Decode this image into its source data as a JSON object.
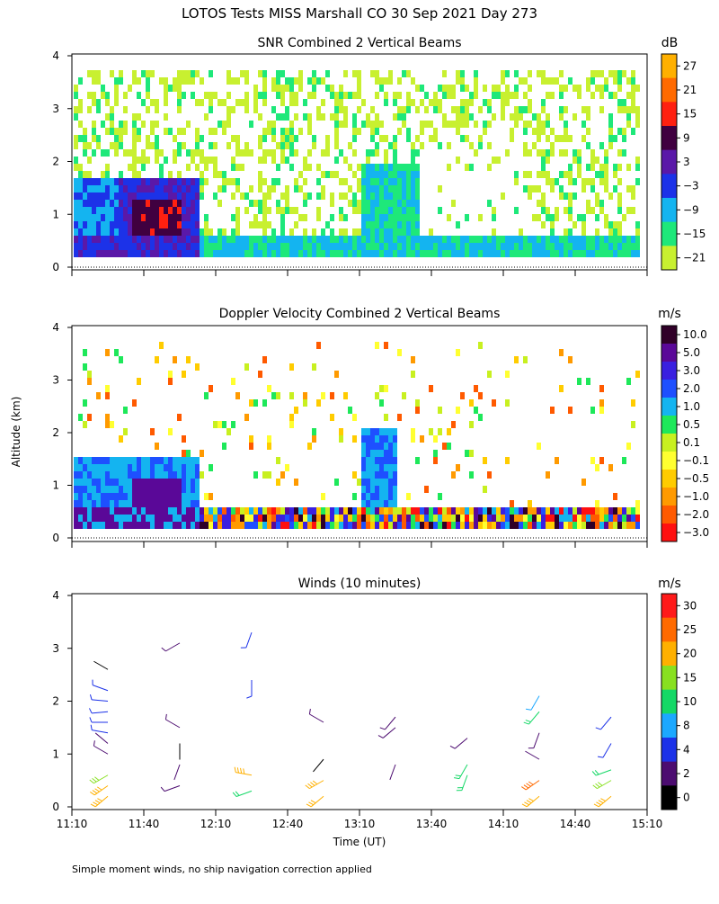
{
  "page": {
    "title": "LOTOS Tests MISS Marshall CO  30 Sep 2021 Day 273",
    "ylabel": "Altitude (km)",
    "xlabel": "Time (UT)",
    "footnote": "Simple moment winds, no ship navigation correction applied",
    "time_ticks": [
      "11:10",
      "11:40",
      "12:10",
      "12:40",
      "13:10",
      "13:40",
      "14:10",
      "14:40",
      "15:10"
    ]
  },
  "chart_data": [
    {
      "type": "heatmap",
      "title": "SNR Combined 2 Vertical Beams",
      "units": "dB",
      "xlim": [
        "11:10",
        "15:10"
      ],
      "ylim": [
        0,
        4
      ],
      "yticks": [
        0,
        1,
        2,
        3,
        4
      ],
      "colorbar_labels": [
        "27",
        "21",
        "15",
        "9",
        "3",
        "−3",
        "−9",
        "−15",
        "−21"
      ],
      "colorbar_colors": [
        "#ffb000",
        "#ff6a00",
        "#ff2010",
        "#400040",
        "#5a18a8",
        "#1c32e8",
        "#14b4f0",
        "#1ee87a",
        "#c8f030"
      ],
      "description_regions": [
        {
          "t": "11:10-11:45",
          "alt_km": [
            0.25,
            1.7
          ],
          "snr_db": "-9 to 9"
        },
        {
          "t": "11:40-11:55",
          "alt_km": [
            0.3,
            1.5
          ],
          "snr_db": "9 to 21"
        },
        {
          "t": "11:10-15:10",
          "alt_km": [
            0.25,
            0.6
          ],
          "snr_db": "-15 to -3"
        },
        {
          "t": "11:10-15:10",
          "alt_km": [
            0.6,
            4.0
          ],
          "snr_db": "-21 to -15 (scattered)"
        }
      ]
    },
    {
      "type": "heatmap",
      "title": "Doppler Velocity Combined 2 Vertical Beams",
      "units": "m/s",
      "xlim": [
        "11:10",
        "15:10"
      ],
      "ylim": [
        0,
        4
      ],
      "yticks": [
        0,
        1,
        2,
        3,
        4
      ],
      "colorbar_labels": [
        "10.0",
        "5.0",
        "3.0",
        "2.0",
        "1.0",
        "0.5",
        "0.1",
        "−0.1",
        "−0.5",
        "−1.0",
        "−2.0",
        "−3.0"
      ],
      "colorbar_colors": [
        "#300028",
        "#5a0898",
        "#3a20e0",
        "#1e50ff",
        "#14b4f0",
        "#1ee85a",
        "#c8f020",
        "#ffff30",
        "#ffcc00",
        "#ff9a00",
        "#ff5a00",
        "#ff1010"
      ],
      "description_regions": [
        {
          "t": "11:10-11:55",
          "alt_km": [
            0.3,
            1.6
          ],
          "w_ms": "1.0 to 5.0"
        },
        {
          "t": "12:00-15:10",
          "alt_km": [
            0.3,
            0.7
          ],
          "w_ms": "mixed -3.0 to 10.0"
        }
      ]
    },
    {
      "type": "scatter",
      "title": "Winds (10 minutes)",
      "units": "m/s",
      "xlim": [
        "11:10",
        "15:10"
      ],
      "ylim": [
        0,
        4
      ],
      "yticks": [
        0,
        1,
        2,
        3,
        4
      ],
      "colorbar_labels": [
        "30",
        "25",
        "20",
        "15",
        "10",
        "8",
        "4",
        "2",
        "0"
      ],
      "colorbar_colors": [
        "#ff1a1a",
        "#ff6a00",
        "#ffb000",
        "#88e020",
        "#14d866",
        "#1ca8ff",
        "#1c32e8",
        "#4c0c70",
        "#000000"
      ],
      "profiles": [
        {
          "time": "11:25",
          "winds": [
            {
              "alt": 0.2,
              "speed": 24,
              "dir": 230
            },
            {
              "alt": 0.4,
              "speed": 22,
              "dir": 235
            },
            {
              "alt": 0.6,
              "speed": 16,
              "dir": 240
            },
            {
              "alt": 1.0,
              "speed": 3,
              "dir": 300
            },
            {
              "alt": 1.2,
              "speed": 2,
              "dir": 310
            },
            {
              "alt": 1.4,
              "speed": 4,
              "dir": 280
            },
            {
              "alt": 1.6,
              "speed": 5,
              "dir": 270
            },
            {
              "alt": 1.8,
              "speed": 6,
              "dir": 265
            },
            {
              "alt": 2.0,
              "speed": 4,
              "dir": 275
            },
            {
              "alt": 2.2,
              "speed": 4,
              "dir": 290
            },
            {
              "alt": 2.6,
              "speed": 1,
              "dir": 300
            }
          ]
        },
        {
          "time": "11:55",
          "winds": [
            {
              "alt": 0.4,
              "speed": 3,
              "dir": 250
            },
            {
              "alt": 0.8,
              "speed": 2,
              "dir": 200
            },
            {
              "alt": 1.2,
              "speed": 1,
              "dir": 180
            },
            {
              "alt": 1.5,
              "speed": 3,
              "dir": 300
            },
            {
              "alt": 3.1,
              "speed": 3,
              "dir": 240
            }
          ]
        },
        {
          "time": "12:25",
          "winds": [
            {
              "alt": 0.3,
              "speed": 13,
              "dir": 250
            },
            {
              "alt": 0.6,
              "speed": 22,
              "dir": 280
            },
            {
              "alt": 2.4,
              "speed": 4,
              "dir": 180
            },
            {
              "alt": 3.3,
              "speed": 4,
              "dir": 200
            }
          ]
        },
        {
          "time": "12:55",
          "winds": [
            {
              "alt": 0.2,
              "speed": 20,
              "dir": 230
            },
            {
              "alt": 0.5,
              "speed": 22,
              "dir": 240
            },
            {
              "alt": 0.9,
              "speed": 1,
              "dir": 220
            },
            {
              "alt": 1.6,
              "speed": 3,
              "dir": 300
            }
          ]
        },
        {
          "time": "13:25",
          "winds": [
            {
              "alt": 0.8,
              "speed": 2,
              "dir": 200
            },
            {
              "alt": 1.5,
              "speed": 3,
              "dir": 230
            },
            {
              "alt": 1.7,
              "speed": 3,
              "dir": 220
            }
          ]
        },
        {
          "time": "13:55",
          "winds": [
            {
              "alt": 0.6,
              "speed": 12,
              "dir": 200
            },
            {
              "alt": 0.8,
              "speed": 13,
              "dir": 210
            },
            {
              "alt": 1.3,
              "speed": 3,
              "dir": 230
            }
          ]
        },
        {
          "time": "14:25",
          "winds": [
            {
              "alt": 0.2,
              "speed": 24,
              "dir": 230
            },
            {
              "alt": 0.5,
              "speed": 25,
              "dir": 235
            },
            {
              "alt": 0.9,
              "speed": 2,
              "dir": 300
            },
            {
              "alt": 1.4,
              "speed": 3,
              "dir": 200
            },
            {
              "alt": 1.8,
              "speed": 12,
              "dir": 220
            },
            {
              "alt": 2.1,
              "speed": 8,
              "dir": 210
            }
          ]
        },
        {
          "time": "14:55",
          "winds": [
            {
              "alt": 0.2,
              "speed": 24,
              "dir": 230
            },
            {
              "alt": 0.5,
              "speed": 18,
              "dir": 240
            },
            {
              "alt": 0.7,
              "speed": 14,
              "dir": 250
            },
            {
              "alt": 1.2,
              "speed": 4,
              "dir": 210
            },
            {
              "alt": 1.7,
              "speed": 4,
              "dir": 220
            }
          ]
        }
      ]
    }
  ]
}
